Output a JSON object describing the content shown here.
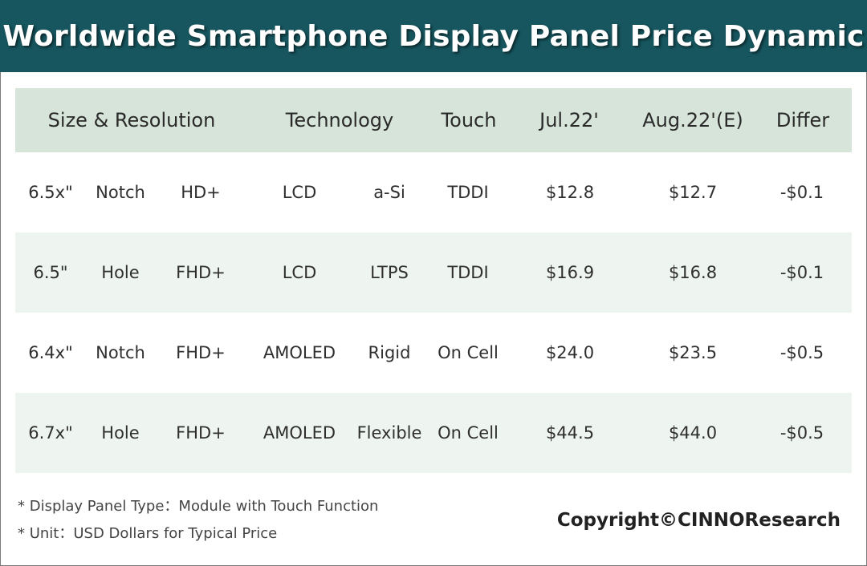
{
  "title": "Worldwide Smartphone Display Panel Price Dynamic",
  "chart_data": {
    "type": "table",
    "title": "Worldwide Smartphone Display Panel Price Dynamic",
    "columns": [
      "Size & Resolution",
      "Technology",
      "Touch",
      "Jul.22'",
      "Aug.22'(E)",
      "Differ"
    ],
    "rows": [
      {
        "size": "6.5x\"",
        "cut": "Notch",
        "resolution": "HD+",
        "panel": "LCD",
        "backplane": "a-Si",
        "touch": "TDDI",
        "jul": "$12.8",
        "aug": "$12.7",
        "differ": "-$0.1"
      },
      {
        "size": "6.5\"",
        "cut": "Hole",
        "resolution": "FHD+",
        "panel": "LCD",
        "backplane": "LTPS",
        "touch": "TDDI",
        "jul": "$16.9",
        "aug": "$16.8",
        "differ": "-$0.1"
      },
      {
        "size": "6.4x\"",
        "cut": "Notch",
        "resolution": "FHD+",
        "panel": "AMOLED",
        "backplane": "Rigid",
        "touch": "On Cell",
        "jul": "$24.0",
        "aug": "$23.5",
        "differ": "-$0.5"
      },
      {
        "size": "6.7x\"",
        "cut": "Hole",
        "resolution": "FHD+",
        "panel": "AMOLED",
        "backplane": "Flexible",
        "touch": "On Cell",
        "jul": "$44.5",
        "aug": "$44.0",
        "differ": "-$0.5"
      }
    ],
    "notes": [
      "* Display Panel Type：Module with Touch Function",
      "* Unit：USD Dollars for Typical Price"
    ],
    "copyright": "Copyright©CINNOResearch"
  },
  "colors": {
    "title_bg": "#17565f",
    "header_bg": "#d7e4da",
    "row_shade": "#eef4ef"
  }
}
